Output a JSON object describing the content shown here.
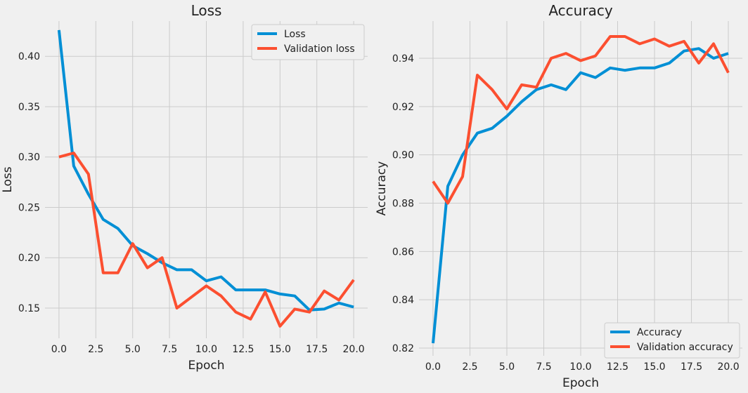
{
  "colors": {
    "primary": "#008fd5",
    "secondary": "#fc4f30"
  },
  "chart_data": [
    {
      "type": "line",
      "title": "Loss",
      "xlabel": "Epoch",
      "ylabel": "Loss",
      "xlim": [
        -0.95,
        20.95
      ],
      "ylim": [
        0.12,
        0.435
      ],
      "xticks": [
        0,
        2.5,
        5,
        7.5,
        10,
        12.5,
        15,
        17.5,
        20
      ],
      "xtick_labels": [
        "0.0",
        "2.5",
        "5.0",
        "7.5",
        "10.0",
        "12.5",
        "15.0",
        "17.5",
        "20.0"
      ],
      "yticks": [
        0.15,
        0.2,
        0.25,
        0.3,
        0.35,
        0.4
      ],
      "ytick_labels": [
        "0.15",
        "0.20",
        "0.25",
        "0.30",
        "0.35",
        "0.40"
      ],
      "grid": true,
      "legend": "top-right",
      "x": [
        0,
        1,
        2,
        3,
        4,
        5,
        6,
        7,
        8,
        9,
        10,
        11,
        12,
        13,
        14,
        15,
        16,
        17,
        18,
        19,
        20
      ],
      "series": [
        {
          "name": "Loss",
          "color": "#008fd5",
          "values": [
            0.426,
            0.291,
            0.263,
            0.238,
            0.229,
            0.212,
            0.204,
            0.195,
            0.188,
            0.188,
            0.177,
            0.181,
            0.168,
            0.168,
            0.168,
            0.164,
            0.162,
            0.148,
            0.149,
            0.155,
            0.151
          ]
        },
        {
          "name": "Validation loss",
          "color": "#fc4f30",
          "values": [
            0.3,
            0.304,
            0.283,
            0.185,
            0.185,
            0.214,
            0.19,
            0.2,
            0.15,
            0.161,
            0.172,
            0.162,
            0.146,
            0.139,
            0.166,
            0.132,
            0.149,
            0.146,
            0.167,
            0.158,
            0.178
          ]
        }
      ]
    },
    {
      "type": "line",
      "title": "Accuracy",
      "xlabel": "Epoch",
      "ylabel": "Accuracy",
      "xlim": [
        -0.95,
        20.95
      ],
      "ylim": [
        0.8168,
        0.9554
      ],
      "xticks": [
        0,
        2.5,
        5,
        7.5,
        10,
        12.5,
        15,
        17.5,
        20
      ],
      "xtick_labels": [
        "0.0",
        "2.5",
        "5.0",
        "7.5",
        "10.0",
        "12.5",
        "15.0",
        "17.5",
        "20.0"
      ],
      "yticks": [
        0.82,
        0.84,
        0.86,
        0.88,
        0.9,
        0.92,
        0.94
      ],
      "ytick_labels": [
        "0.82",
        "0.84",
        "0.86",
        "0.88",
        "0.90",
        "0.92",
        "0.94"
      ],
      "grid": true,
      "legend": "bottom-right",
      "x": [
        0,
        1,
        2,
        3,
        4,
        5,
        6,
        7,
        8,
        9,
        10,
        11,
        12,
        13,
        14,
        15,
        16,
        17,
        18,
        19,
        20
      ],
      "series": [
        {
          "name": "Accuracy",
          "color": "#008fd5",
          "values": [
            0.822,
            0.887,
            0.9,
            0.909,
            0.911,
            0.916,
            0.922,
            0.927,
            0.929,
            0.927,
            0.934,
            0.932,
            0.936,
            0.935,
            0.936,
            0.936,
            0.938,
            0.943,
            0.944,
            0.94,
            0.942
          ]
        },
        {
          "name": "Validation accuracy",
          "color": "#fc4f30",
          "values": [
            0.889,
            0.88,
            0.891,
            0.933,
            0.927,
            0.919,
            0.929,
            0.928,
            0.94,
            0.942,
            0.939,
            0.941,
            0.949,
            0.949,
            0.946,
            0.948,
            0.945,
            0.947,
            0.938,
            0.946,
            0.934
          ]
        }
      ]
    }
  ]
}
